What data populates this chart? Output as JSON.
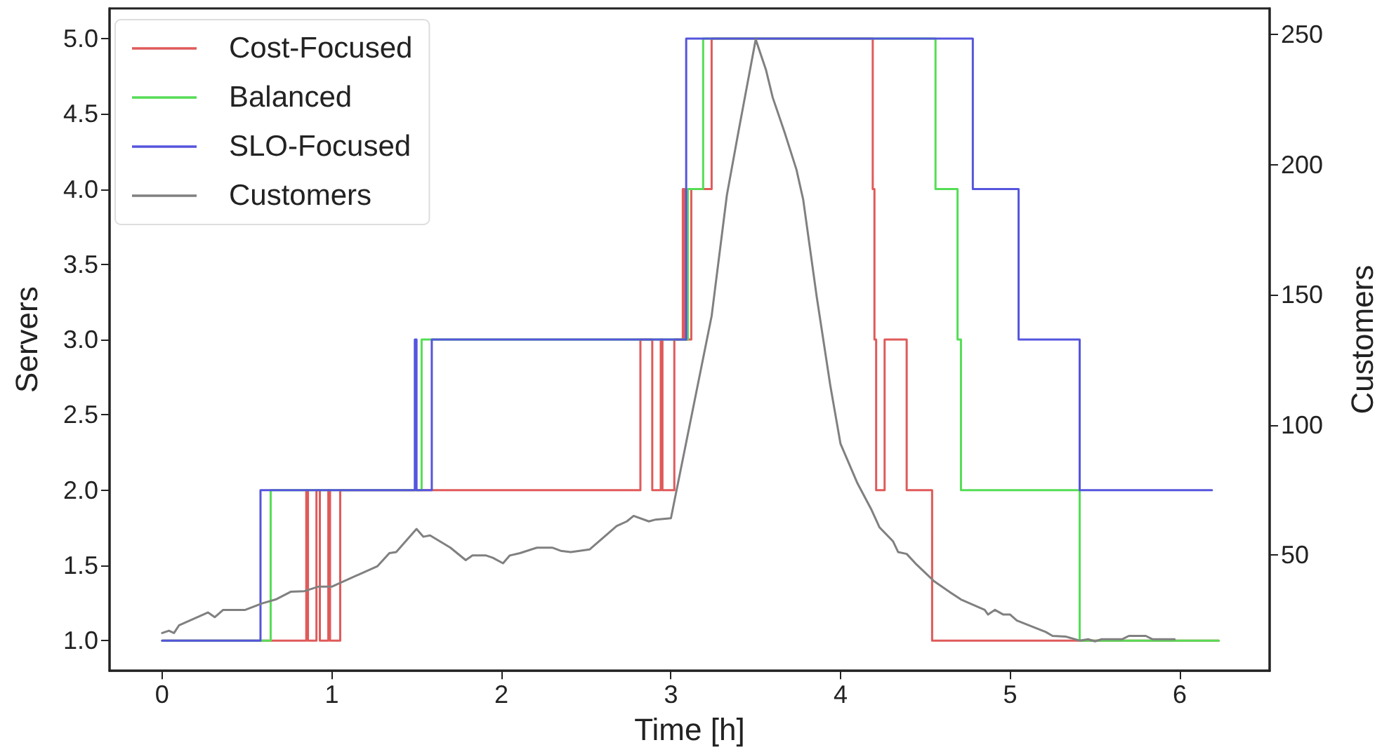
{
  "chart_data": {
    "type": "step",
    "xlabel": "Time [h]",
    "ylabel": "Servers",
    "y2label": "Customers",
    "xlim": [
      -0.31,
      6.53
    ],
    "xticks": [
      0,
      1,
      2,
      3,
      4,
      5,
      6
    ],
    "ylim": [
      0.8,
      5.2
    ],
    "yticks": [
      {
        "value": 1,
        "label": "1.0"
      },
      {
        "value": 1.5,
        "label": "1.5"
      },
      {
        "value": 2,
        "label": "2.0"
      },
      {
        "value": 2.5,
        "label": "2.5"
      },
      {
        "value": 3,
        "label": "3.0"
      },
      {
        "value": 3.5,
        "label": "3.5"
      },
      {
        "value": 4,
        "label": "4.0"
      },
      {
        "value": 4.5,
        "label": "4.5"
      },
      {
        "value": 5,
        "label": "5.0"
      }
    ],
    "y2lim": [
      5.5,
      260
    ],
    "y2ticks": [
      50,
      100,
      150,
      200,
      250
    ],
    "grid": false,
    "legend": "top left",
    "marker": "none",
    "line_style": "solid",
    "series": [
      {
        "name": "Cost-Focused",
        "color": "#e05a5a",
        "x": [
          0,
          0.85,
          0.86,
          0.91,
          0.93,
          0.98,
          0.99,
          1.05,
          2.82,
          2.89,
          2.94,
          2.95,
          3.02,
          3.07,
          3.08,
          3.12,
          3.24,
          4.19,
          4.2,
          4.21,
          4.26,
          4.39,
          4.54,
          6.23
        ],
        "values": [
          1,
          2,
          1,
          2,
          1,
          2,
          1,
          2,
          3,
          2,
          3,
          2,
          3,
          4,
          3,
          4,
          5,
          4,
          3,
          2,
          3,
          2,
          1,
          1
        ]
      },
      {
        "name": "Balanced",
        "color": "#55dd55",
        "x": [
          0,
          0.64,
          1.53,
          3.1,
          3.19,
          4.56,
          4.69,
          4.71,
          5.41,
          6.23
        ],
        "values": [
          1,
          2,
          3,
          4,
          5,
          4,
          3,
          2,
          1,
          1
        ]
      },
      {
        "name": "SLO-Focused",
        "color": "#5555dd",
        "x": [
          0,
          0.58,
          1.49,
          1.5,
          1.59,
          3.09,
          4.78,
          5.05,
          5.41,
          6.19
        ],
        "values": [
          1,
          2,
          3,
          2,
          3,
          5,
          4,
          3,
          2,
          2
        ]
      },
      {
        "name": "Customers",
        "type": "line",
        "axis": "y2",
        "color": "#808080",
        "x": [
          0,
          0.04,
          0.07,
          0.1,
          0.27,
          0.31,
          0.36,
          0.49,
          0.59,
          0.67,
          0.76,
          0.84,
          0.92,
          1.0,
          1.27,
          1.34,
          1.38,
          1.5,
          1.54,
          1.58,
          1.7,
          1.79,
          1.83,
          1.91,
          1.95,
          2.01,
          2.05,
          2.11,
          2.21,
          2.3,
          2.35,
          2.41,
          2.52,
          2.68,
          2.74,
          2.78,
          2.87,
          2.91,
          3.0,
          3.24,
          3.33,
          3.4,
          3.5,
          3.56,
          3.6,
          3.67,
          3.74,
          3.78,
          3.86,
          3.94,
          4.0,
          4.1,
          4.18,
          4.23,
          4.31,
          4.34,
          4.39,
          4.45,
          4.55,
          4.65,
          4.71,
          4.85,
          4.87,
          4.91,
          4.96,
          5.0,
          5.04,
          5.21,
          5.25,
          5.33,
          5.41,
          5.46,
          5.5,
          5.54,
          5.66,
          5.7,
          5.8,
          5.84,
          5.97
        ],
        "values": [
          20,
          20.9,
          20,
          23,
          27.9,
          26.1,
          28.9,
          28.9,
          31.4,
          32.9,
          35.9,
          36.1,
          37.8,
          37.8,
          45.7,
          50.7,
          51.1,
          60,
          57,
          57.5,
          52.8,
          48,
          49.8,
          49.8,
          48.9,
          46.8,
          49.8,
          50.7,
          52.8,
          52.8,
          51.6,
          51.1,
          52.1,
          61.1,
          62.9,
          65,
          62.9,
          63.6,
          64.1,
          141.8,
          188.3,
          213.3,
          248.1,
          236.5,
          225.8,
          212.4,
          198.1,
          186.5,
          149,
          115,
          92.7,
          77.5,
          67.7,
          60.6,
          55.2,
          51.1,
          50.4,
          46.2,
          40,
          35.5,
          32.9,
          28.9,
          27.1,
          28.9,
          27.1,
          27.1,
          24.8,
          20.4,
          18.9,
          18.6,
          17.1,
          17.6,
          16.8,
          17.6,
          17.6,
          18.9,
          18.9,
          17.6,
          17.6
        ]
      }
    ]
  }
}
